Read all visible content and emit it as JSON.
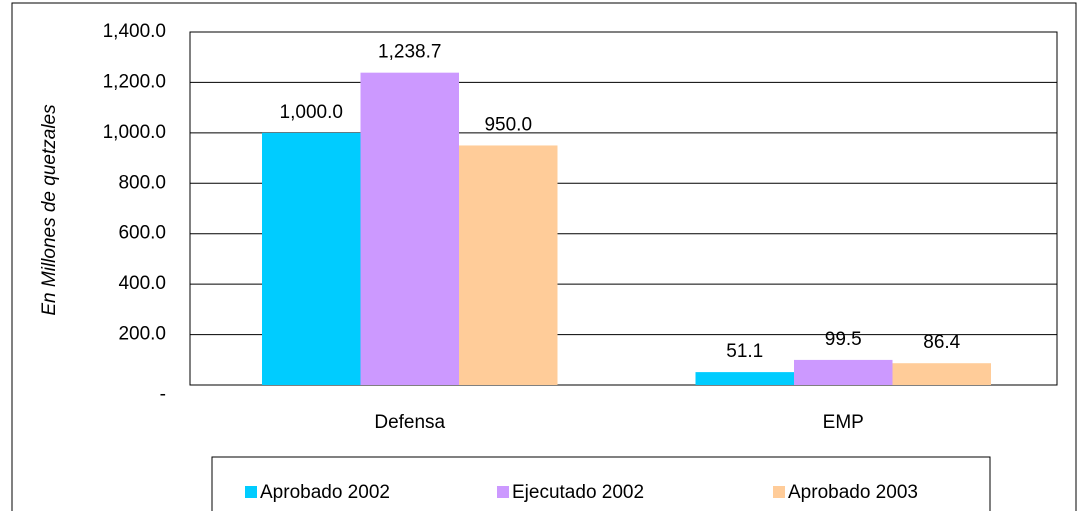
{
  "chart_data": {
    "type": "bar",
    "y_label": "En Millones de quetzales",
    "categories": [
      "Defensa",
      "EMP"
    ],
    "series": [
      {
        "name": "Aprobado 2002",
        "color": "#00ccff",
        "values": [
          1000.0,
          51.1
        ],
        "value_labels": [
          "1,000.0",
          "51.1"
        ]
      },
      {
        "name": "Ejecutado 2002",
        "color": "#cc99ff",
        "values": [
          1238.7,
          99.5
        ],
        "value_labels": [
          "1,238.7",
          "99.5"
        ]
      },
      {
        "name": "Aprobado 2003",
        "color": "#ffcc99",
        "values": [
          950.0,
          86.4
        ],
        "value_labels": [
          "950.0",
          "86.4"
        ]
      }
    ],
    "ylim": [
      0,
      1400
    ],
    "yticks": [
      {
        "value": 0,
        "label": "-"
      },
      {
        "value": 200,
        "label": "200.0"
      },
      {
        "value": 400,
        "label": "400.0"
      },
      {
        "value": 600,
        "label": "600.0"
      },
      {
        "value": 800,
        "label": "800.0"
      },
      {
        "value": 1000,
        "label": "1,000.0"
      },
      {
        "value": 1200,
        "label": "1,200.0"
      },
      {
        "value": 1400,
        "label": "1,400.0"
      }
    ],
    "grid": true,
    "legend": "bottom"
  }
}
